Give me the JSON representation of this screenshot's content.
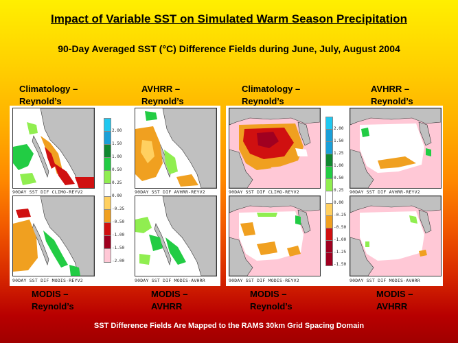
{
  "title": "Impact of Variable SST on Simulated Warm Season Precipitation",
  "subtitle": "90-Day Averaged SST (°C) Difference Fields during June, July, August 2004",
  "labels": {
    "left_top_1": "Climatology –\nReynold’s",
    "left_top_2": "AVHRR –\nReynold’s",
    "right_top_1": "Climatology –\nReynold’s",
    "right_top_2": "AVHRR –\nReynold’s",
    "left_bot_1": "MODIS –\nReynold’s",
    "left_bot_2": "MODIS –\nAVHRR",
    "right_bot_1": "MODIS –\nReynold’s",
    "right_bot_2": "MODIS –\nAVHRR"
  },
  "captions": {
    "p1": "90DAY SST DIF CLIMO-REYV2",
    "p2": "90DAY SST DIF AVHRR-REYV2",
    "p3": "90DAY SST DIF MODIS-REYV2",
    "p4": "90DAY SST DIF MODIS-AVHRR",
    "p5": "90DAY SST DIF CLIMO-REYV2",
    "p6": "90DAY SST DIF AVHRR-REYV2",
    "p7": "90DAY SST DIF MODIS-REYV2",
    "p8": "90DAY SST DIF MODIS-AVHRR"
  },
  "legend_left": [
    "2.00",
    "1.50",
    "1.00",
    "0.50",
    "0.25",
    "0.00",
    "-0.25",
    "-0.50",
    "-1.00",
    "-1.50",
    "-2.00"
  ],
  "legend_right": [
    "2.00",
    "1.50",
    "1.25",
    "1.00",
    "0.50",
    "0.25",
    "0.00",
    "-0.25",
    "-0.50",
    "-1.00",
    "-1.25",
    "-1.50"
  ],
  "colors": {
    "land": "#c0c0c0",
    "ocean_neutral": "#ffffff",
    "warm_cold_pink": "#ffc8d6",
    "green": "#22cc44",
    "light_green": "#90ee50",
    "orange": "#f0a020",
    "red": "#d01010",
    "dark_red": "#a00020",
    "cyan": "#20c8f0"
  },
  "footer": "SST Difference Fields Are Mapped to the RAMS 30km Grid Spacing Domain"
}
